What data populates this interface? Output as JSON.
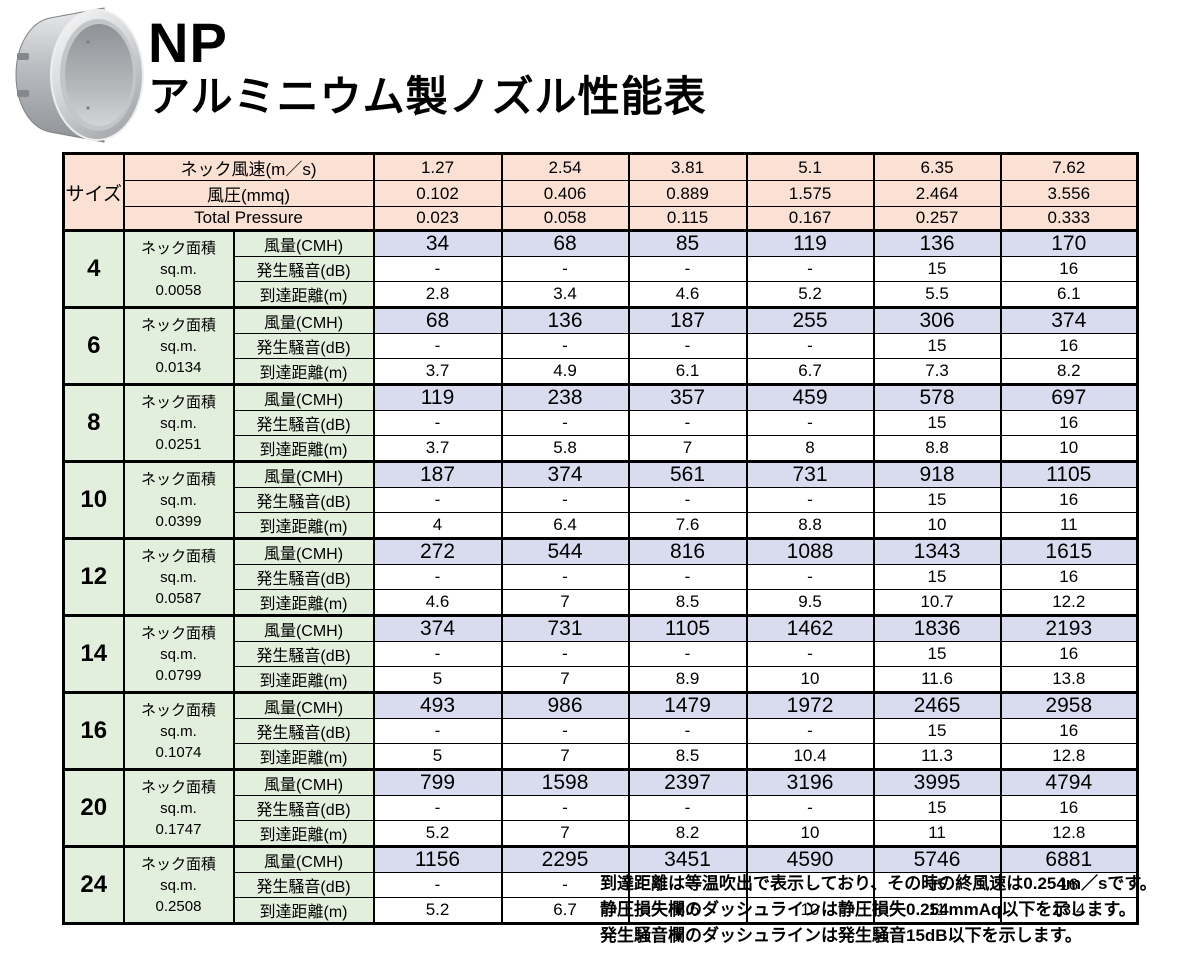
{
  "header": {
    "product_code": "NP",
    "title": "アルミニウム製ノズル性能表"
  },
  "table": {
    "size_label": "サイズ",
    "header_rows": [
      {
        "label": "ネック風速(m／s)",
        "values": [
          "1.27",
          "2.54",
          "3.81",
          "5.1",
          "6.35",
          "7.62"
        ]
      },
      {
        "label": "風圧(mmq)",
        "values": [
          "0.102",
          "0.406",
          "0.889",
          "1.575",
          "2.464",
          "3.556"
        ]
      },
      {
        "label": "Total Pressure",
        "values": [
          "0.023",
          "0.058",
          "0.115",
          "0.167",
          "0.257",
          "0.333"
        ]
      }
    ],
    "area_label_line1": "ネック面積",
    "area_label_line2": "sq.m.",
    "row_labels": [
      "風量(CMH)",
      "発生騒音(dB)",
      "到達距離(m)"
    ],
    "sizes": [
      {
        "size": "4",
        "area": "0.0058",
        "cmh": [
          "34",
          "68",
          "85",
          "119",
          "136",
          "170"
        ],
        "db": [
          "-",
          "-",
          "-",
          "-",
          "15",
          "16"
        ],
        "reach": [
          "2.8",
          "3.4",
          "4.6",
          "5.2",
          "5.5",
          "6.1"
        ]
      },
      {
        "size": "6",
        "area": "0.0134",
        "cmh": [
          "68",
          "136",
          "187",
          "255",
          "306",
          "374"
        ],
        "db": [
          "-",
          "-",
          "-",
          "-",
          "15",
          "16"
        ],
        "reach": [
          "3.7",
          "4.9",
          "6.1",
          "6.7",
          "7.3",
          "8.2"
        ]
      },
      {
        "size": "8",
        "area": "0.0251",
        "cmh": [
          "119",
          "238",
          "357",
          "459",
          "578",
          "697"
        ],
        "db": [
          "-",
          "-",
          "-",
          "-",
          "15",
          "16"
        ],
        "reach": [
          "3.7",
          "5.8",
          "7",
          "8",
          "8.8",
          "10"
        ]
      },
      {
        "size": "10",
        "area": "0.0399",
        "cmh": [
          "187",
          "374",
          "561",
          "731",
          "918",
          "1105"
        ],
        "db": [
          "-",
          "-",
          "-",
          "-",
          "15",
          "16"
        ],
        "reach": [
          "4",
          "6.4",
          "7.6",
          "8.8",
          "10",
          "11"
        ]
      },
      {
        "size": "12",
        "area": "0.0587",
        "cmh": [
          "272",
          "544",
          "816",
          "1088",
          "1343",
          "1615"
        ],
        "db": [
          "-",
          "-",
          "-",
          "-",
          "15",
          "16"
        ],
        "reach": [
          "4.6",
          "7",
          "8.5",
          "9.5",
          "10.7",
          "12.2"
        ]
      },
      {
        "size": "14",
        "area": "0.0799",
        "cmh": [
          "374",
          "731",
          "1105",
          "1462",
          "1836",
          "2193"
        ],
        "db": [
          "-",
          "-",
          "-",
          "-",
          "15",
          "16"
        ],
        "reach": [
          "5",
          "7",
          "8.9",
          "10",
          "11.6",
          "13.8"
        ]
      },
      {
        "size": "16",
        "area": "0.1074",
        "cmh": [
          "493",
          "986",
          "1479",
          "1972",
          "2465",
          "2958"
        ],
        "db": [
          "-",
          "-",
          "-",
          "-",
          "15",
          "16"
        ],
        "reach": [
          "5",
          "7",
          "8.5",
          "10.4",
          "11.3",
          "12.8"
        ]
      },
      {
        "size": "20",
        "area": "0.1747",
        "cmh": [
          "799",
          "1598",
          "2397",
          "3196",
          "3995",
          "4794"
        ],
        "db": [
          "-",
          "-",
          "-",
          "-",
          "15",
          "16"
        ],
        "reach": [
          "5.2",
          "7",
          "8.2",
          "10",
          "11",
          "12.8"
        ]
      },
      {
        "size": "24",
        "area": "0.2508",
        "cmh": [
          "1156",
          "2295",
          "3451",
          "4590",
          "5746",
          "6881"
        ],
        "db": [
          "-",
          "-",
          "-",
          "-",
          "15",
          "16"
        ],
        "reach": [
          "5.2",
          "6.7",
          "8.6",
          "10",
          "11",
          "13.4"
        ]
      }
    ]
  },
  "notes": [
    "到達距離は等温吹出で表示しており、その時の終風速は0.254m／sです。",
    "静圧損失欄のダッシュラインは静圧損失0.254mmAq以下を示します。",
    "発生騒音欄のダッシュラインは発生騒音15dB以下を示します。"
  ],
  "colors": {
    "header_bg": "#fbe0d4",
    "size_bg": "#e3efdd",
    "airflow_bg": "#d9dcee",
    "cell_bg": "#ffffff",
    "border": "#000000"
  }
}
